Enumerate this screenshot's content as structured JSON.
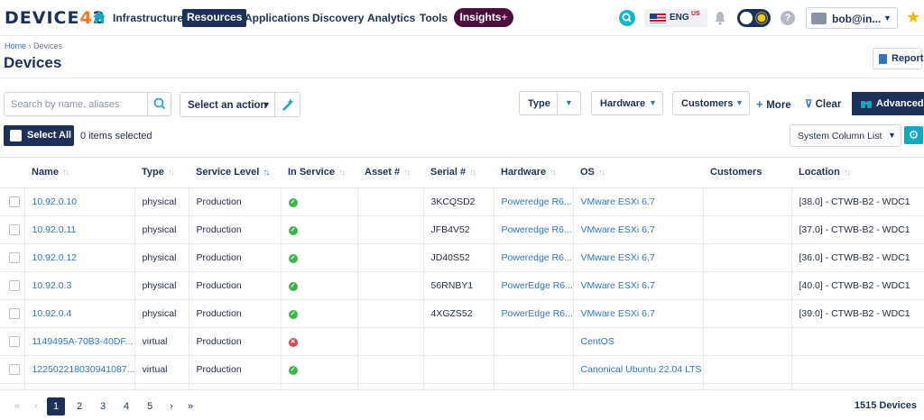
{
  "logo": {
    "prefix": "DEVICE",
    "accent": "4",
    "suffix": "2"
  },
  "nav": {
    "items": [
      "Infrastructure",
      "Resources",
      "Applications",
      "Discovery",
      "Analytics",
      "Tools"
    ],
    "active": "Resources",
    "insights": "Insights",
    "insights_plus": "+",
    "language": "ENG",
    "language_region": "US",
    "user": "bob@in...",
    "help": "?"
  },
  "breadcrumb": {
    "home": "Home",
    "sep": " › ",
    "current": "Devices"
  },
  "page_title": "Devices",
  "report_label": "Report",
  "toolbar": {
    "search_placeholder": "Search by name, aliases",
    "action_label": "Select an action",
    "filters": [
      "Type",
      "Hardware",
      "Customers"
    ],
    "more_label": "More",
    "clear_label": "Clear",
    "advanced_label": "Advanced",
    "select_all_label": "Select All",
    "selected_count": "0 items selected",
    "column_list": "System Column List"
  },
  "table": {
    "columns": [
      "Name",
      "Type",
      "Service Level",
      "In Service",
      "Asset #",
      "Serial #",
      "Hardware",
      "OS",
      "Customers",
      "Location"
    ],
    "rows": [
      {
        "name": "10.92.0.10",
        "type": "physical",
        "service_level": "Production",
        "in_service": true,
        "asset": "",
        "serial": "3KCQSD2",
        "hardware": "Poweredge R6...",
        "os": "VMware ESXi 6.7",
        "customers": "",
        "location": "[38.0] - CTWB-B2 - WDC1"
      },
      {
        "name": "10.92.0.11",
        "type": "physical",
        "service_level": "Production",
        "in_service": true,
        "asset": "",
        "serial": "JFB4V52",
        "hardware": "Poweredge R6...",
        "os": "VMware ESXi 6.7",
        "customers": "",
        "location": "[37.0] - CTWB-B2 - WDC1"
      },
      {
        "name": "10.92.0.12",
        "type": "physical",
        "service_level": "Production",
        "in_service": true,
        "asset": "",
        "serial": "JD40S52",
        "hardware": "Poweredge R6...",
        "os": "VMware ESXi 6.7",
        "customers": "",
        "location": "[36.0] - CTWB-B2 - WDC1"
      },
      {
        "name": "10.92.0.3",
        "type": "physical",
        "service_level": "Production",
        "in_service": true,
        "asset": "",
        "serial": "56RNBY1",
        "hardware": "PowerEdge R6...",
        "os": "VMware ESXi 6.7",
        "customers": "",
        "location": "[40.0] - CTWB-B2 - WDC1"
      },
      {
        "name": "10.92.0.4",
        "type": "physical",
        "service_level": "Production",
        "in_service": true,
        "asset": "",
        "serial": "4XGZS52",
        "hardware": "PowerEdge R6...",
        "os": "VMware ESXi 6.7",
        "customers": "",
        "location": "[39.0] - CTWB-B2 - WDC1"
      },
      {
        "name": "1149495A-70B3-40DF...",
        "type": "virtual",
        "service_level": "Production",
        "in_service": false,
        "asset": "",
        "serial": "",
        "hardware": "",
        "os": "CentOS",
        "customers": "",
        "location": ""
      },
      {
        "name": "122502218030941087...",
        "type": "virtual",
        "service_level": "Production",
        "in_service": true,
        "asset": "",
        "serial": "",
        "hardware": "",
        "os": "Canonical Ubuntu 22.04 LTS",
        "customers": "",
        "location": ""
      },
      {
        "name": "",
        "type": "",
        "service_level": "",
        "in_service": null,
        "asset": "",
        "serial": "",
        "hardware": "",
        "os": "",
        "customers": "",
        "location": ""
      }
    ]
  },
  "pagination": {
    "first": "«",
    "prev": "‹",
    "pages": [
      "1",
      "2",
      "3",
      "4",
      "5"
    ],
    "current": "1",
    "next": "›",
    "last": "»",
    "total": "1515 Devices"
  },
  "colors": {
    "navy": "#1d3058",
    "link": "#2f74c0",
    "accent": "#f47920",
    "insights": "#4a0f3c",
    "ok": "#3bb54a",
    "error": "#e0454a"
  }
}
